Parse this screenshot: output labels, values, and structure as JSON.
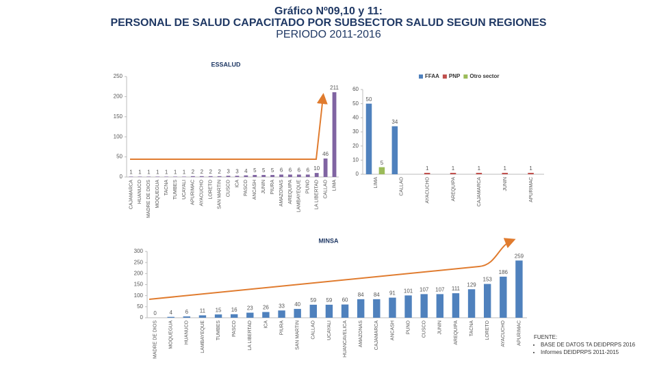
{
  "title": "Gráfico Nº09,10 y 11:",
  "subtitle": "PERSONAL DE SALUD CAPACITADO POR SUBSECTOR SALUD SEGUN REGIONES",
  "period": "PERIODO 2011-2016",
  "source": {
    "heading": "FUENTE:",
    "items": [
      "BASE DE DATOS TA DEIDPRPS 2016",
      "Informes DEIDPRPS 2011-2015"
    ]
  },
  "chart_data": [
    {
      "type": "bar",
      "title": "ESSALUD",
      "color": "#8064a2",
      "categories": [
        "CAJAMARCA",
        "HUANUCO",
        "MADRE DE DIOS",
        "MOQUEGUA",
        "TACNA",
        "TUMBES",
        "UCAYALI",
        "APURIMAC",
        "AYACUCHO",
        "LORETO",
        "SAN MARTIN",
        "CUSCO",
        "ICA",
        "PASCO",
        "ANCASH",
        "JUNIN",
        "PIURA",
        "AMAZONAS",
        "AREQUIPA",
        "LAMBAYEQUE",
        "PUNO",
        "LA LIBERTAD",
        "CALLAO",
        "LIMA"
      ],
      "values": [
        1,
        1,
        1,
        1,
        1,
        1,
        1,
        2,
        2,
        2,
        2,
        3,
        3,
        4,
        5,
        5,
        5,
        6,
        6,
        6,
        6,
        10,
        46,
        211
      ],
      "ylim": [
        0,
        250
      ],
      "yticks": [
        0,
        50,
        100,
        150,
        200,
        250
      ]
    },
    {
      "type": "bar",
      "legend": "top",
      "categories": [
        "LIMA",
        "CALLAO",
        "AYACUCHO",
        "AREQUIPA",
        "CAJAMARCA",
        "JUNIN",
        "APURIMAC"
      ],
      "series": [
        {
          "name": "FFAA",
          "color": "#4f81bd",
          "values": [
            50,
            34,
            null,
            null,
            null,
            null,
            null
          ]
        },
        {
          "name": "PNP",
          "color": "#c0504d",
          "values": [
            null,
            null,
            1,
            1,
            1,
            1,
            1
          ]
        },
        {
          "name": "Otro sector",
          "color": "#9bbb59",
          "values": [
            5,
            null,
            null,
            null,
            null,
            null,
            null
          ]
        }
      ],
      "ylim": [
        0,
        60
      ],
      "yticks": [
        0,
        10,
        20,
        30,
        40,
        50,
        60
      ]
    },
    {
      "type": "bar",
      "title": "MINSA",
      "color": "#4f81bd",
      "categories": [
        "MADRE DE DIOS",
        "MOQUEGUA",
        "HUANUCO",
        "LAMBAYEQUE",
        "TUMBES",
        "PASCO",
        "LA LIBERTAD",
        "ICA",
        "PIURA",
        "SAN MARTIN",
        "CALLAO",
        "UCAYALI",
        "HUANCAVELICA",
        "AMAZONAS",
        "CAJAMARCA",
        "ANCASH",
        "PUNO",
        "CUSCO",
        "JUNIN",
        "AREQUIPA",
        "TACNA",
        "LORETO",
        "AYACUCHO",
        "APURIMAC"
      ],
      "values": [
        0,
        4,
        6,
        11,
        15,
        16,
        23,
        26,
        33,
        40,
        59,
        59,
        60,
        84,
        84,
        91,
        101,
        107,
        107,
        111,
        129,
        153,
        186,
        259
      ],
      "ylim": [
        0,
        300
      ],
      "yticks": [
        0,
        50,
        100,
        150,
        200,
        250,
        300
      ]
    }
  ]
}
